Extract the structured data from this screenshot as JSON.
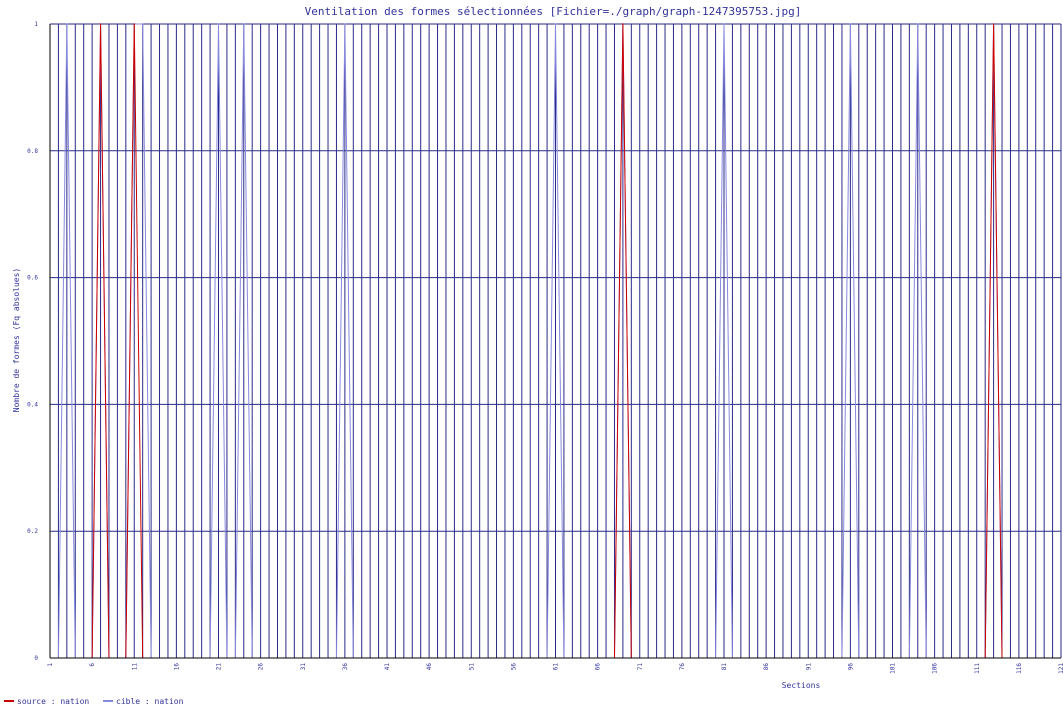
{
  "chart_data": {
    "type": "line",
    "title": "Ventilation des formes sélectionnées [Fichier=./graph/graph-1247395753.jpg]",
    "xlabel": "Sections",
    "ylabel": "Nombre de formes (Fq absolues)",
    "xlim": [
      1,
      121
    ],
    "ylim": [
      0,
      1
    ],
    "x_ticks": [
      "1",
      "6",
      "11",
      "16",
      "21",
      "26",
      "31",
      "36",
      "41",
      "46",
      "51",
      "56",
      "61",
      "66",
      "71",
      "76",
      "81",
      "86",
      "91",
      "96",
      "101",
      "106",
      "111",
      "116",
      "121"
    ],
    "y_ticks": [
      "0",
      "0.2",
      "0.4",
      "0.6",
      "0.8",
      "1"
    ],
    "grid": true,
    "legend_position": "bottom-left",
    "series": [
      {
        "name": "source : nation",
        "color": "#cc0000",
        "nonzero_x": [
          7,
          11,
          69,
          113
        ],
        "values_at_nonzero": [
          1,
          1,
          1,
          1
        ]
      },
      {
        "name": "cible : nation",
        "color": "#8888dd",
        "nonzero_x": [
          3,
          7,
          11,
          12,
          21,
          24,
          36,
          61,
          69,
          81,
          96,
          104,
          113
        ],
        "values_at_nonzero": [
          1,
          1,
          1,
          1,
          1,
          1,
          1,
          1,
          1,
          1,
          1,
          1,
          1
        ]
      }
    ]
  }
}
